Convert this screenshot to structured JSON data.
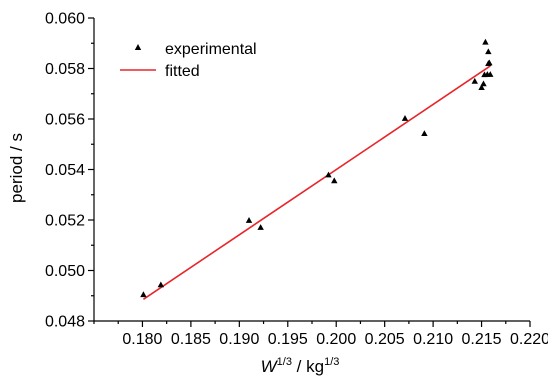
{
  "chart_data": {
    "type": "scatter",
    "title": "",
    "xlabel": {
      "main": "W",
      "sup1": "1/3",
      "mid": " / kg",
      "sup2": "1/3"
    },
    "ylabel": "period / s",
    "xlim": [
      0.175,
      0.22
    ],
    "ylim": [
      0.048,
      0.06
    ],
    "xticks": [
      "0.180",
      "0.185",
      "0.190",
      "0.195",
      "0.200",
      "0.205",
      "0.210",
      "0.215",
      "0.220"
    ],
    "yticks": [
      "0.048",
      "0.050",
      "0.052",
      "0.054",
      "0.056",
      "0.058",
      "0.060"
    ],
    "legend": {
      "position": "top-left",
      "entries": [
        "experimental",
        "fitted"
      ]
    },
    "colors": {
      "experimental": "#000000",
      "fitted": "#e8262a"
    },
    "series": [
      {
        "name": "experimental",
        "kind": "scatter",
        "marker": "triangle",
        "points": [
          [
            0.1801,
            0.04905
          ],
          [
            0.1819,
            0.04944
          ],
          [
            0.191,
            0.05199
          ],
          [
            0.1922,
            0.05171
          ],
          [
            0.1992,
            0.05379
          ],
          [
            0.1998,
            0.05356
          ],
          [
            0.2071,
            0.05603
          ],
          [
            0.2091,
            0.05543
          ],
          [
            0.2143,
            0.0575
          ],
          [
            0.215,
            0.05725
          ],
          [
            0.2152,
            0.0574
          ],
          [
            0.2153,
            0.05776
          ],
          [
            0.2154,
            0.05905
          ],
          [
            0.2156,
            0.05777
          ],
          [
            0.2157,
            0.0582
          ],
          [
            0.2157,
            0.05867
          ],
          [
            0.2158,
            0.05823
          ],
          [
            0.2159,
            0.05777
          ]
        ]
      },
      {
        "name": "fitted",
        "kind": "line",
        "points": [
          [
            0.1801,
            0.04886
          ],
          [
            0.2159,
            0.0581
          ]
        ]
      }
    ]
  }
}
